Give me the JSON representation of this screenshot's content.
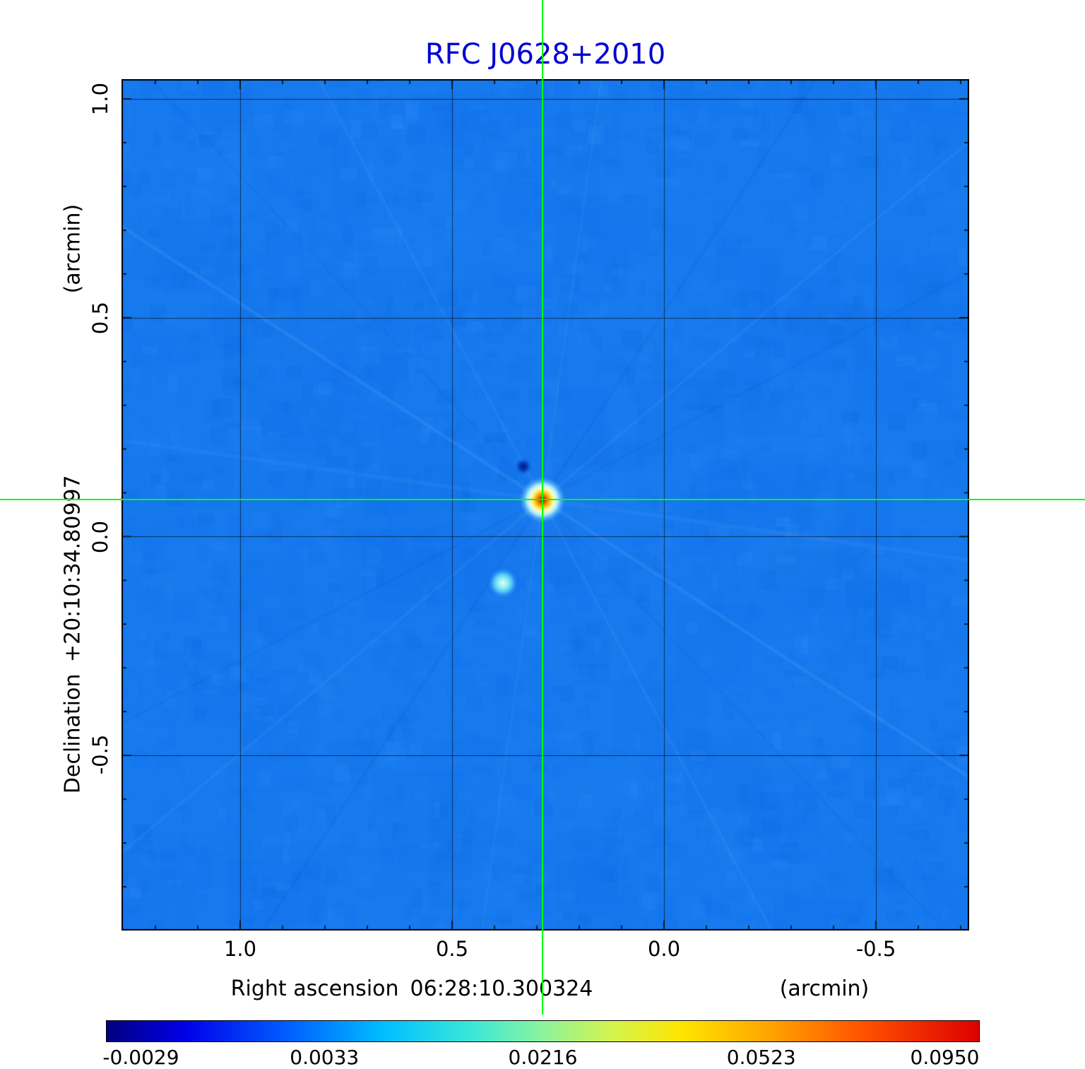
{
  "title": "RFC J0628+2010",
  "colors": {
    "title": "#0000d2",
    "crosshair": "#00ff00",
    "map_base": "#1679ee",
    "grid": "rgba(0,0,0,0.6)",
    "noise_palette": [
      "#0a5fd8",
      "#0d6be4",
      "#2a8bf8",
      "#3e9bff",
      "#1070ea",
      "#2080f4"
    ]
  },
  "axes": {
    "x": {
      "label": "Right ascension",
      "coordinate": "06:28:10.300324",
      "unit": "(arcmin)",
      "ticks": [
        "1.0",
        "0.5",
        "0.0",
        "-0.5"
      ]
    },
    "y": {
      "label": "Declination",
      "coordinate": "+20:10:34.80997",
      "unit": "(arcmin)",
      "ticks": [
        "1.0",
        "0.5",
        "0.0",
        "-0.5"
      ]
    }
  },
  "colorbar": {
    "ticks": [
      "-0.0029",
      "0.0033",
      "0.0216",
      "0.0523",
      "0.0950"
    ],
    "tick_positions": [
      0.04,
      0.25,
      0.5,
      0.75,
      0.96
    ],
    "gradient": [
      [
        0,
        "#000080"
      ],
      [
        0.09,
        "#0000e8"
      ],
      [
        0.2,
        "#0058ff"
      ],
      [
        0.32,
        "#00c0ff"
      ],
      [
        0.42,
        "#3ce8d8"
      ],
      [
        0.5,
        "#8cf49c"
      ],
      [
        0.58,
        "#d4f44c"
      ],
      [
        0.66,
        "#ffe400"
      ],
      [
        0.76,
        "#ffa400"
      ],
      [
        0.87,
        "#ff5000"
      ],
      [
        1,
        "#dc0000"
      ]
    ]
  },
  "chart_data": {
    "type": "heatmap",
    "title": "RFC J0628+2010",
    "xlabel": "Right ascension 06:28:10.300324 (arcmin)",
    "ylabel": "Declination +20:10:34.80997 (arcmin)",
    "x_ticks_arcmin": [
      1.0,
      0.5,
      0.0,
      -0.5
    ],
    "y_ticks_arcmin": [
      1.0,
      0.5,
      0.0,
      -0.5
    ],
    "xlim": [
      1.28,
      -0.72
    ],
    "ylim": [
      -0.9,
      1.045
    ],
    "grid": true,
    "colormap": "jet-like",
    "intensity_scale": [
      -0.0029,
      0.0033,
      0.0216,
      0.0523,
      0.095
    ],
    "crosshair_arcmin": {
      "x": 0.287,
      "y": 0.084
    },
    "sources": [
      {
        "name": "primary-peak",
        "x_arcmin": 0.287,
        "y_arcmin": 0.084,
        "peak_intensity": 0.095
      },
      {
        "name": "secondary-blob",
        "x_arcmin": 0.38,
        "y_arcmin": -0.106,
        "peak_intensity": 0.02
      },
      {
        "name": "negative-sidelobe",
        "x_arcmin": 0.332,
        "y_arcmin": 0.16,
        "peak_intensity": -0.003
      }
    ]
  }
}
